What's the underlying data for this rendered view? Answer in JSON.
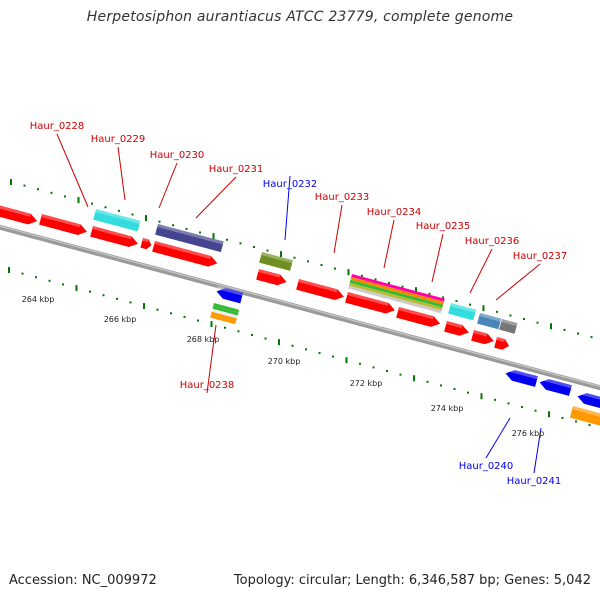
{
  "title": "Herpetosiphon aurantiacus ATCC 23779, complete genome",
  "footer": {
    "accession": "Accession: NC_009972",
    "summary": "Topology: circular; Length: 6,346,587 bp; Genes: 5,042"
  },
  "colors": {
    "red": "#ff0000",
    "blue": "#0000ee",
    "tick": "#007700",
    "backbone": "#808080",
    "cyan": "#33dddd",
    "navy": "#45458f",
    "olive": "#6f8f22",
    "steel": "#4a86b8",
    "gray": "#777777",
    "green": "#33bb33",
    "orange": "#ff9900"
  },
  "scale_labels": [
    "264 kbp",
    "266 kbp",
    "268 kbp",
    "270 kbp",
    "272 kbp",
    "274 kbp",
    "276 kbp"
  ],
  "genes": [
    {
      "id": "Haur_0228",
      "strand": "plus",
      "color": "red"
    },
    {
      "id": "Haur_0229",
      "strand": "plus",
      "color": "cyan"
    },
    {
      "id": "Haur_0230",
      "strand": "plus",
      "color": "red"
    },
    {
      "id": "Haur_0231",
      "strand": "plus",
      "color": "navy"
    },
    {
      "id": "Haur_0232",
      "strand": "minus",
      "color": "blue"
    },
    {
      "id": "Haur_0233",
      "strand": "plus",
      "color": "olive"
    },
    {
      "id": "Haur_0234",
      "strand": "plus",
      "color": "red"
    },
    {
      "id": "Haur_0235",
      "strand": "plus",
      "color": "multi"
    },
    {
      "id": "Haur_0236",
      "strand": "plus",
      "color": "red"
    },
    {
      "id": "Haur_0237",
      "strand": "plus",
      "color": "cyan"
    },
    {
      "id": "Haur_0238",
      "strand": "plus",
      "color": "steel"
    },
    {
      "id": "Haur_0240",
      "strand": "minus",
      "color": "blue"
    },
    {
      "id": "Haur_0241",
      "strand": "minus",
      "color": "orange"
    }
  ]
}
